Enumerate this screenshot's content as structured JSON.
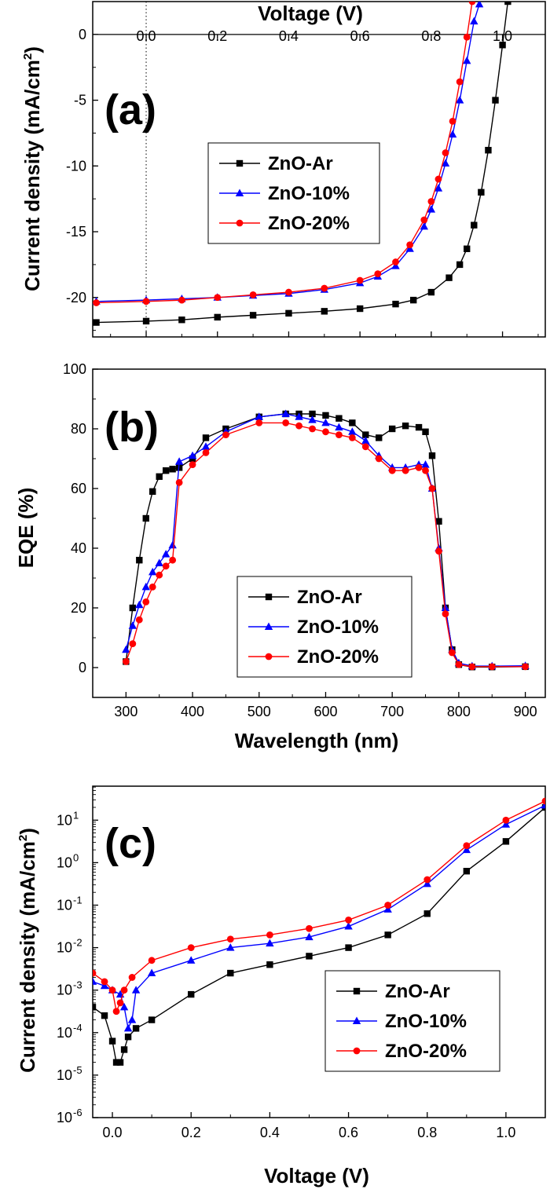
{
  "chart_data": [
    {
      "panel": "a",
      "panel_label": "(a)",
      "type": "line",
      "xlabel": "Voltage (V)",
      "ylabel_main": "Current density (mA/cm",
      "ylabel_sup": "2",
      "ylabel_close": ")",
      "xlim": [
        -0.15,
        1.12
      ],
      "ylim": [
        -23,
        2.5
      ],
      "xticks": [
        0.0,
        0.2,
        0.4,
        0.6,
        0.8,
        1.0
      ],
      "xtick_labels": [
        "0.0",
        "0.2",
        "0.4",
        "0.6",
        "0.8",
        "1.0"
      ],
      "yticks": [
        0,
        -5,
        -10,
        -15,
        -20
      ],
      "ytick_labels": [
        "0",
        "-5",
        "-10",
        "-15",
        "-20"
      ],
      "legend_position": "center",
      "series": [
        {
          "name": "ZnO-Ar",
          "color": "#000000",
          "marker": "square",
          "x": [
            -0.14,
            0.0,
            0.1,
            0.2,
            0.3,
            0.4,
            0.5,
            0.6,
            0.7,
            0.75,
            0.8,
            0.85,
            0.88,
            0.9,
            0.92,
            0.94,
            0.96,
            0.98,
            1.0,
            1.015
          ],
          "y": [
            -21.9,
            -21.8,
            -21.7,
            -21.5,
            -21.35,
            -21.2,
            -21.05,
            -20.85,
            -20.5,
            -20.2,
            -19.6,
            -18.5,
            -17.5,
            -16.3,
            -14.5,
            -12.0,
            -8.8,
            -5.0,
            -0.8,
            2.5
          ]
        },
        {
          "name": "ZnO-10%",
          "color": "#0000ff",
          "marker": "triangle",
          "x": [
            -0.14,
            0.0,
            0.1,
            0.2,
            0.3,
            0.4,
            0.5,
            0.6,
            0.65,
            0.7,
            0.74,
            0.78,
            0.8,
            0.82,
            0.84,
            0.86,
            0.88,
            0.9,
            0.92,
            0.935
          ],
          "y": [
            -20.3,
            -20.2,
            -20.1,
            -20.0,
            -19.85,
            -19.7,
            -19.4,
            -18.9,
            -18.4,
            -17.6,
            -16.3,
            -14.6,
            -13.3,
            -11.7,
            -9.8,
            -7.6,
            -5.0,
            -2.0,
            1.0,
            2.3
          ]
        },
        {
          "name": "ZnO-20%",
          "color": "#ff0000",
          "marker": "circle",
          "x": [
            -0.14,
            0.0,
            0.1,
            0.2,
            0.3,
            0.4,
            0.5,
            0.6,
            0.65,
            0.7,
            0.74,
            0.78,
            0.8,
            0.82,
            0.84,
            0.86,
            0.88,
            0.9,
            0.915
          ],
          "y": [
            -20.4,
            -20.3,
            -20.2,
            -20.0,
            -19.8,
            -19.6,
            -19.3,
            -18.7,
            -18.2,
            -17.3,
            -16.0,
            -14.1,
            -12.7,
            -11.0,
            -9.0,
            -6.6,
            -3.6,
            -0.2,
            2.5
          ]
        }
      ]
    },
    {
      "panel": "b",
      "panel_label": "(b)",
      "type": "line",
      "xlabel": "Wavelength (nm)",
      "ylabel": "EQE (%)",
      "xlim": [
        250,
        930
      ],
      "ylim": [
        -10,
        100
      ],
      "xticks": [
        300,
        400,
        500,
        600,
        700,
        800,
        900
      ],
      "xtick_labels": [
        "300",
        "400",
        "500",
        "600",
        "700",
        "800",
        "900"
      ],
      "yticks": [
        0,
        20,
        40,
        60,
        80,
        100
      ],
      "ytick_labels": [
        "0",
        "20",
        "40",
        "60",
        "80",
        "100"
      ],
      "legend_position": "bottom-center",
      "series": [
        {
          "name": "ZnO-Ar",
          "color": "#000000",
          "marker": "square",
          "x": [
            300,
            310,
            320,
            330,
            340,
            350,
            360,
            370,
            380,
            400,
            420,
            450,
            500,
            540,
            560,
            580,
            600,
            620,
            640,
            660,
            680,
            700,
            720,
            740,
            750,
            760,
            770,
            780,
            790,
            800,
            820,
            850,
            900
          ],
          "y": [
            2,
            20,
            36,
            50,
            59,
            64,
            66,
            66.5,
            67,
            70,
            77,
            80,
            84,
            85,
            85,
            85,
            84.5,
            83.5,
            82,
            78,
            77,
            80,
            81,
            80.5,
            79,
            71,
            49,
            20,
            6,
            1,
            0.2,
            0.2,
            0.3
          ]
        },
        {
          "name": "ZnO-10%",
          "color": "#0000ff",
          "marker": "triangle",
          "x": [
            300,
            310,
            320,
            330,
            340,
            350,
            360,
            370,
            380,
            400,
            420,
            450,
            500,
            540,
            560,
            580,
            600,
            620,
            640,
            660,
            680,
            700,
            720,
            740,
            750,
            760,
            770,
            780,
            790,
            800,
            820,
            850,
            900
          ],
          "y": [
            6,
            14,
            21,
            27,
            32,
            35,
            38,
            41,
            69,
            71,
            74,
            79,
            84,
            85,
            84,
            83,
            82,
            80.5,
            79,
            76,
            71,
            67,
            67,
            68,
            68,
            60,
            40,
            20,
            6,
            1.5,
            0.5,
            0.5,
            0.6
          ]
        },
        {
          "name": "ZnO-20%",
          "color": "#ff0000",
          "marker": "circle",
          "x": [
            300,
            310,
            320,
            330,
            340,
            350,
            360,
            370,
            380,
            400,
            420,
            450,
            500,
            540,
            560,
            580,
            600,
            620,
            640,
            660,
            680,
            700,
            720,
            740,
            750,
            760,
            770,
            780,
            790,
            800,
            820,
            850,
            900
          ],
          "y": [
            2,
            8,
            16,
            22,
            27,
            31,
            34,
            36,
            62,
            68,
            72,
            78,
            82,
            82,
            81,
            80,
            79,
            78,
            77,
            74,
            70,
            66,
            66,
            67,
            66,
            60,
            39,
            18,
            5,
            1,
            0.3,
            0.3,
            0.3
          ]
        }
      ]
    },
    {
      "panel": "c",
      "panel_label": "(c)",
      "type": "line",
      "yscale": "log",
      "xlabel": "Voltage (V)",
      "ylabel_main": "Current density (mA/cm",
      "ylabel_sup": "2",
      "ylabel_close": ")",
      "xlim": [
        -0.05,
        1.1
      ],
      "ylim_exp": [
        -6,
        1.8
      ],
      "xticks": [
        0.0,
        0.2,
        0.4,
        0.6,
        0.8,
        1.0
      ],
      "xtick_labels": [
        "0.0",
        "0.2",
        "0.4",
        "0.6",
        "0.8",
        "1.0"
      ],
      "yticks_exp": [
        1,
        0,
        -1,
        -2,
        -3,
        -4,
        -5,
        -6
      ],
      "ytick_base": "10",
      "ytick_exp_labels": [
        "1",
        "0",
        "-1",
        "-2",
        "-3",
        "-4",
        "-5",
        "-6"
      ],
      "legend_position": "bottom-right",
      "series": [
        {
          "name": "ZnO-Ar",
          "color": "#000000",
          "marker": "square",
          "x": [
            -0.05,
            -0.02,
            0.0,
            0.01,
            0.02,
            0.03,
            0.04,
            0.06,
            0.1,
            0.2,
            0.3,
            0.4,
            0.5,
            0.6,
            0.7,
            0.8,
            0.9,
            1.0,
            1.1
          ],
          "y_exp": [
            -3.4,
            -3.6,
            -4.2,
            -4.7,
            -4.7,
            -4.4,
            -4.1,
            -3.9,
            -3.7,
            -3.1,
            -2.6,
            -2.4,
            -2.2,
            -2.0,
            -1.7,
            -1.2,
            -0.2,
            0.5,
            1.3
          ]
        },
        {
          "name": "ZnO-10%",
          "color": "#0000ff",
          "marker": "triangle",
          "x": [
            -0.05,
            -0.02,
            0.0,
            0.02,
            0.03,
            0.04,
            0.05,
            0.06,
            0.1,
            0.2,
            0.3,
            0.4,
            0.5,
            0.6,
            0.7,
            0.8,
            0.9,
            1.0,
            1.1
          ],
          "y_exp": [
            -2.8,
            -2.9,
            -3.0,
            -3.1,
            -3.4,
            -3.9,
            -3.7,
            -3.0,
            -2.6,
            -2.3,
            -2.0,
            -1.9,
            -1.75,
            -1.5,
            -1.1,
            -0.5,
            0.3,
            0.9,
            1.35
          ]
        },
        {
          "name": "ZnO-20%",
          "color": "#ff0000",
          "marker": "circle",
          "x": [
            -0.05,
            -0.02,
            0.0,
            0.01,
            0.02,
            0.03,
            0.05,
            0.1,
            0.2,
            0.3,
            0.4,
            0.5,
            0.6,
            0.7,
            0.8,
            0.9,
            1.0,
            1.1
          ],
          "y_exp": [
            -2.6,
            -2.8,
            -3.0,
            -3.5,
            -3.3,
            -3.0,
            -2.7,
            -2.3,
            -2.0,
            -1.8,
            -1.7,
            -1.55,
            -1.35,
            -1.0,
            -0.4,
            0.4,
            1.0,
            1.45
          ]
        }
      ]
    }
  ]
}
